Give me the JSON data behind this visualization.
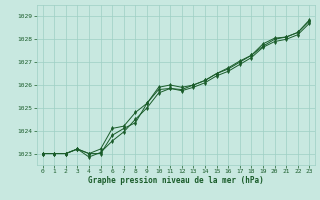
{
  "title": "Graphe pression niveau de la mer (hPa)",
  "bg_color": "#c8e8e0",
  "grid_color": "#9ecfc4",
  "line_color": "#1a5c2a",
  "xlim": [
    -0.5,
    23.5
  ],
  "ylim": [
    1022.5,
    1029.5
  ],
  "yticks": [
    1023,
    1024,
    1025,
    1026,
    1027,
    1028,
    1029
  ],
  "xticks": [
    0,
    1,
    2,
    3,
    4,
    5,
    6,
    7,
    8,
    9,
    10,
    11,
    12,
    13,
    14,
    15,
    16,
    17,
    18,
    19,
    20,
    21,
    22,
    23
  ],
  "series1": [
    1023.0,
    1023.0,
    1023.0,
    1023.2,
    1023.0,
    1023.0,
    1023.8,
    1024.1,
    1024.35,
    1025.2,
    1025.8,
    1025.85,
    1025.8,
    1026.0,
    1026.2,
    1026.5,
    1026.7,
    1027.0,
    1027.3,
    1027.7,
    1028.0,
    1028.1,
    1028.3,
    1028.8
  ],
  "series2": [
    1023.0,
    1023.0,
    1023.0,
    1023.2,
    1022.85,
    1023.05,
    1023.55,
    1023.95,
    1024.5,
    1025.0,
    1025.65,
    1025.85,
    1025.75,
    1025.9,
    1026.1,
    1026.4,
    1026.6,
    1026.9,
    1027.2,
    1027.65,
    1027.9,
    1028.0,
    1028.2,
    1028.7
  ],
  "series3": [
    1023.0,
    1023.0,
    1023.0,
    1023.2,
    1023.0,
    1023.2,
    1024.1,
    1024.2,
    1024.8,
    1025.2,
    1025.9,
    1026.0,
    1025.9,
    1026.0,
    1026.2,
    1026.5,
    1026.75,
    1027.05,
    1027.3,
    1027.8,
    1028.05,
    1028.1,
    1028.3,
    1028.85
  ]
}
